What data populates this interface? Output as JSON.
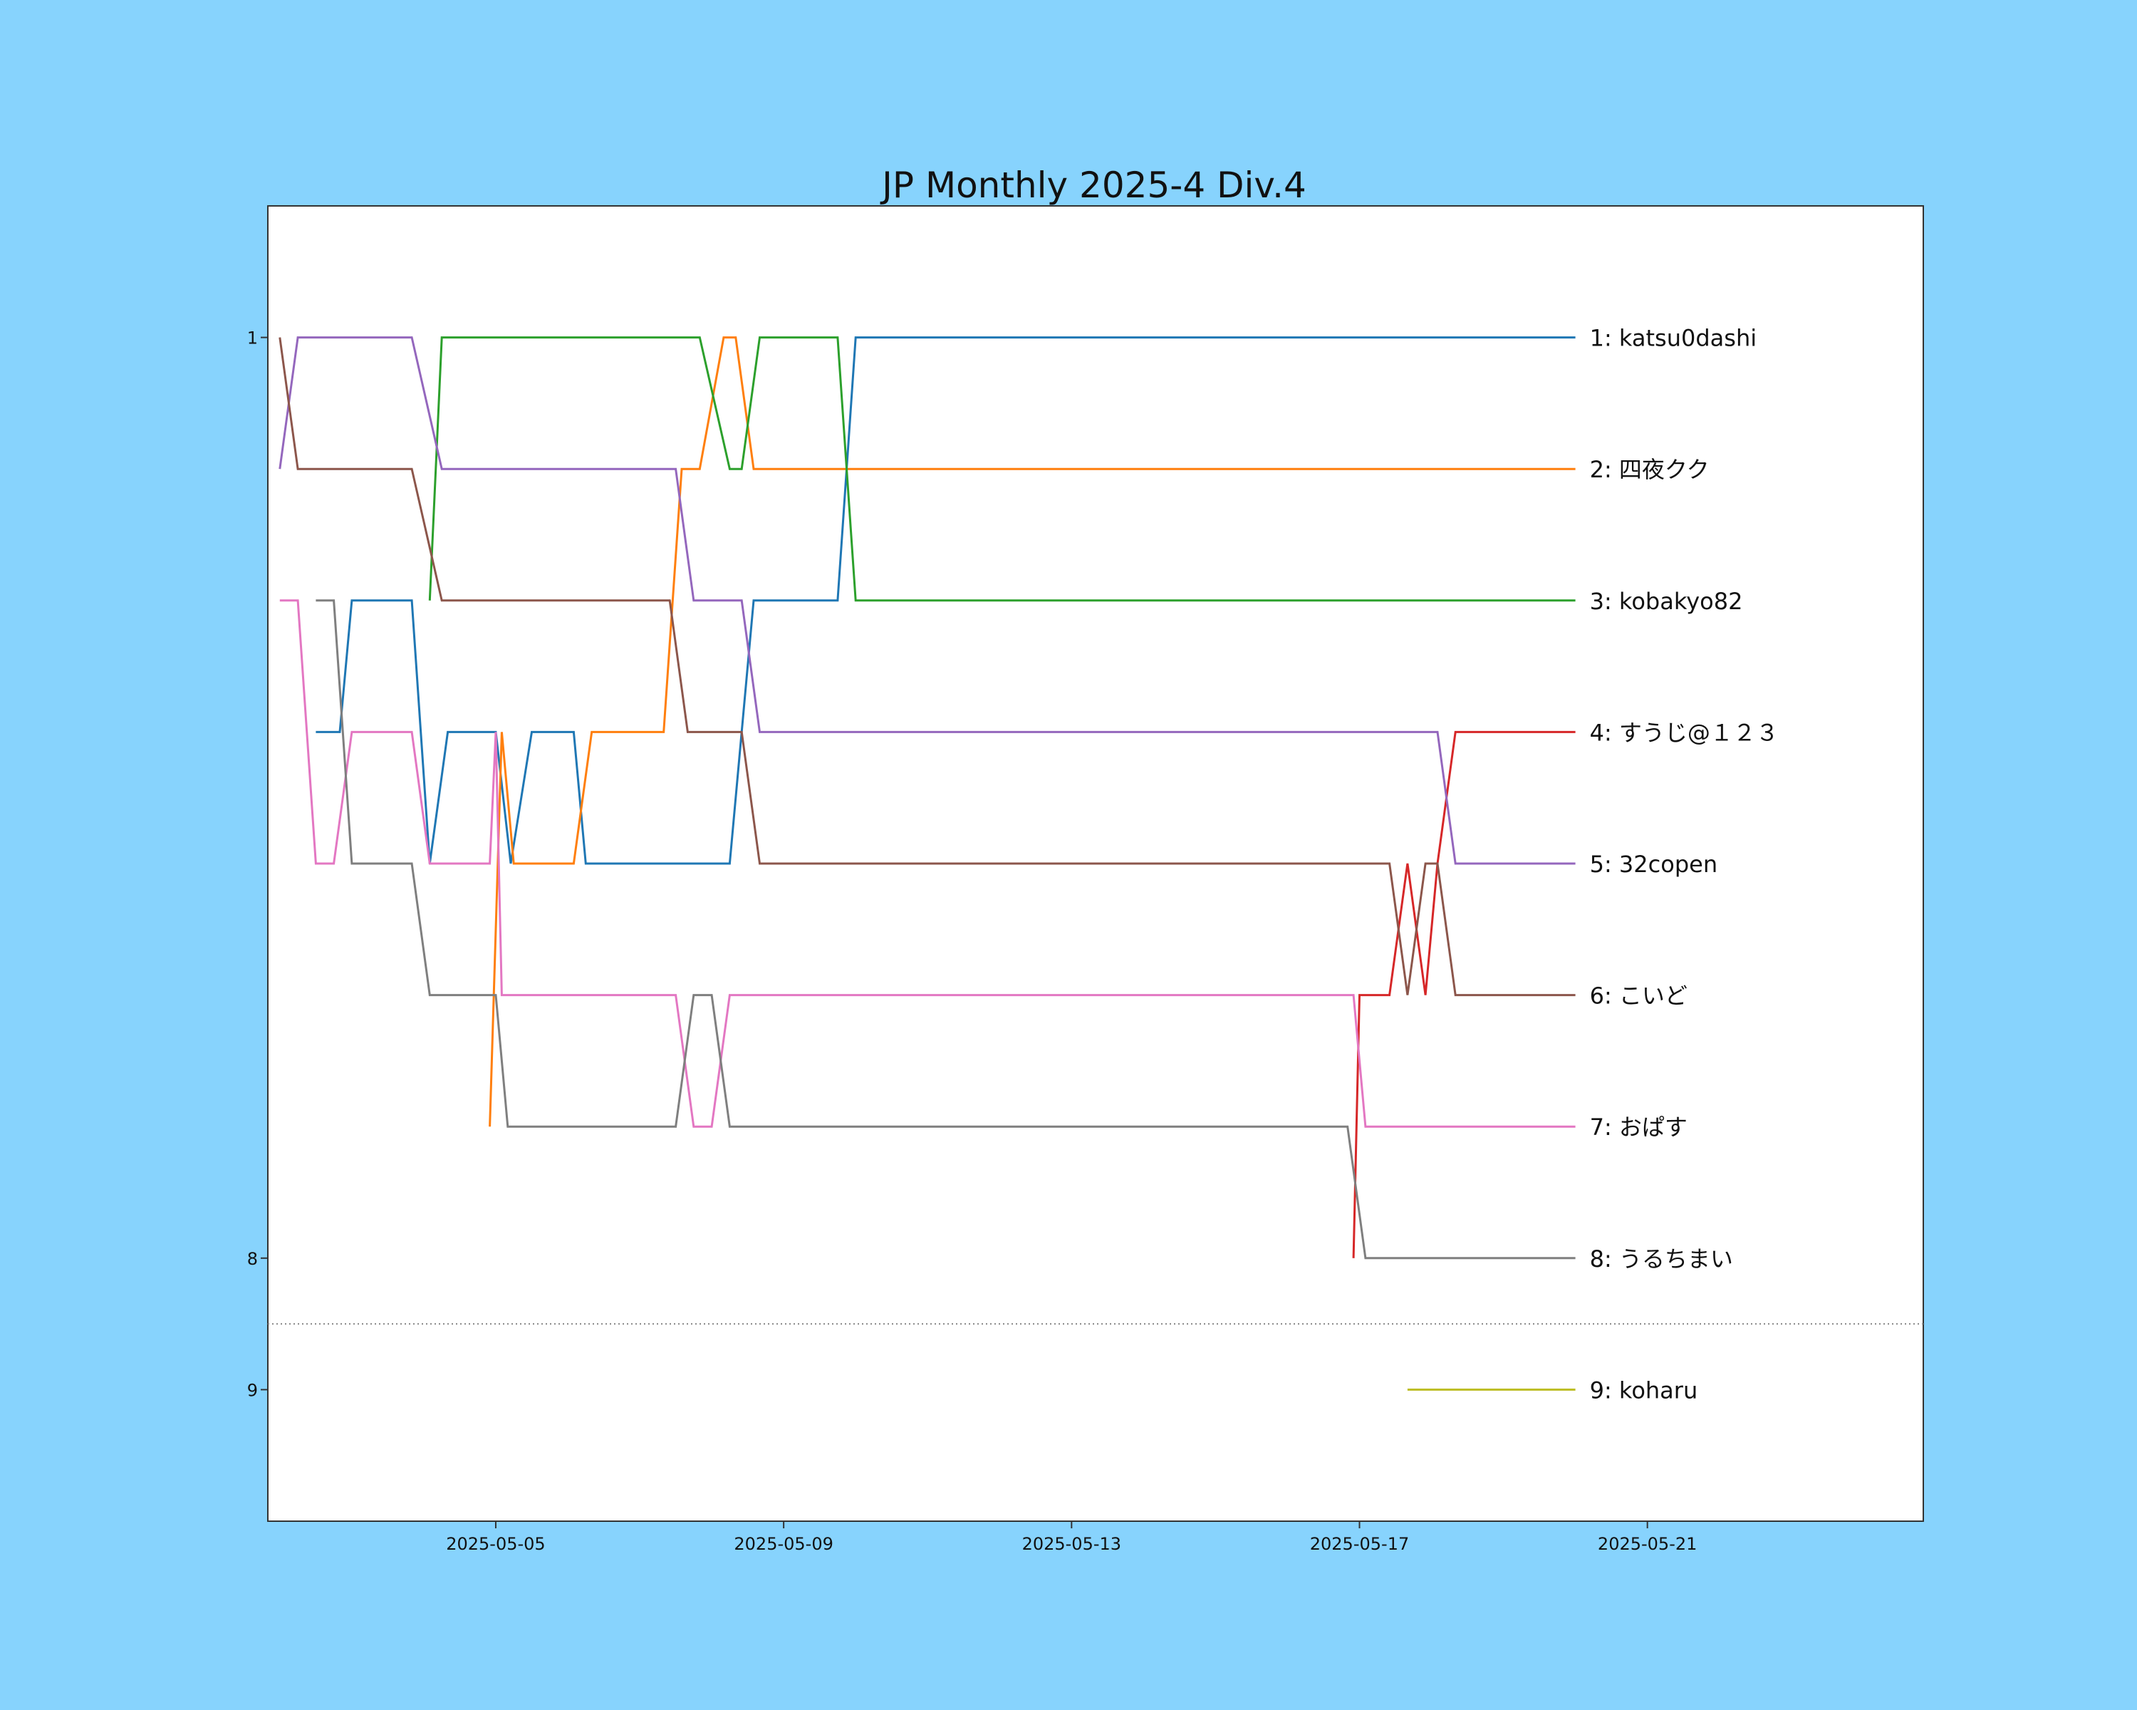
{
  "chart_data": {
    "type": "line",
    "title": "JP Monthly 2025-4 Div.4",
    "xlabel": "",
    "ylabel": "",
    "background": "#87d3fd",
    "plot_background": "#ffffff",
    "x_ticks": [
      "2025-05-05",
      "2025-05-09",
      "2025-05-13",
      "2025-05-17",
      "2025-05-21"
    ],
    "y_ticks": [
      1,
      8,
      9
    ],
    "x_range": [
      "2025-05-01T20:00",
      "2025-05-24T20:00"
    ],
    "y_range": [
      10,
      0
    ],
    "y_inverted": true,
    "grid": false,
    "promotion_line": {
      "y": 8.5,
      "style": "dotted",
      "color": "#888888"
    },
    "series": [
      {
        "name": "katsu0dashi",
        "label": "1: katsu0dashi",
        "color": "#1f77b4",
        "points": [
          [
            "2025-05-02T12:00",
            4
          ],
          [
            "2025-05-02T20:00",
            4
          ],
          [
            "2025-05-03T00:00",
            3
          ],
          [
            "2025-05-03T20:00",
            3
          ],
          [
            "2025-05-04T02:00",
            5
          ],
          [
            "2025-05-04T08:00",
            4
          ],
          [
            "2025-05-05T00:00",
            4
          ],
          [
            "2025-05-05T05:00",
            5
          ],
          [
            "2025-05-05T12:00",
            4
          ],
          [
            "2025-05-06T02:00",
            4
          ],
          [
            "2025-05-06T06:00",
            5
          ],
          [
            "2025-05-08T06:00",
            5
          ],
          [
            "2025-05-08T14:00",
            3
          ],
          [
            "2025-05-09T18:00",
            3
          ],
          [
            "2025-05-10T00:00",
            1
          ],
          [
            "2025-05-20T00:00",
            1
          ]
        ]
      },
      {
        "name": "四夜クク",
        "label": "2: 四夜クク",
        "color": "#ff7f0e",
        "points": [
          [
            "2025-05-04T22:00",
            7
          ],
          [
            "2025-05-05T02:00",
            4
          ],
          [
            "2025-05-05T06:00",
            5
          ],
          [
            "2025-05-06T02:00",
            5
          ],
          [
            "2025-05-06T08:00",
            4
          ],
          [
            "2025-05-07T08:00",
            4
          ],
          [
            "2025-05-07T14:00",
            2
          ],
          [
            "2025-05-07T20:00",
            2
          ],
          [
            "2025-05-08T04:00",
            1
          ],
          [
            "2025-05-08T08:00",
            1
          ],
          [
            "2025-05-08T14:00",
            2
          ],
          [
            "2025-05-20T00:00",
            2
          ]
        ]
      },
      {
        "name": "kobakyo82",
        "label": "3: kobakyo82",
        "color": "#2ca02c",
        "points": [
          [
            "2025-05-04T02:00",
            3
          ],
          [
            "2025-05-04T06:00",
            1
          ],
          [
            "2025-05-07T20:00",
            1
          ],
          [
            "2025-05-08T06:00",
            2
          ],
          [
            "2025-05-08T10:00",
            2
          ],
          [
            "2025-05-08T16:00",
            1
          ],
          [
            "2025-05-09T18:00",
            1
          ],
          [
            "2025-05-10T00:00",
            3
          ],
          [
            "2025-05-20T00:00",
            3
          ]
        ]
      },
      {
        "name": "すうじ@１２３",
        "label": "4: すうじ@１２３",
        "color": "#d62728",
        "points": [
          [
            "2025-05-16T22:00",
            8
          ],
          [
            "2025-05-17T00:00",
            6
          ],
          [
            "2025-05-17T10:00",
            6
          ],
          [
            "2025-05-17T16:00",
            5
          ],
          [
            "2025-05-17T22:00",
            6
          ],
          [
            "2025-05-18T02:00",
            5
          ],
          [
            "2025-05-18T08:00",
            4
          ],
          [
            "2025-05-20T00:00",
            4
          ]
        ]
      },
      {
        "name": "32copen",
        "label": "5: 32copen",
        "color": "#9467bd",
        "points": [
          [
            "2025-05-02T00:00",
            2
          ],
          [
            "2025-05-02T06:00",
            1
          ],
          [
            "2025-05-03T20:00",
            1
          ],
          [
            "2025-05-04T06:00",
            2
          ],
          [
            "2025-05-07T12:00",
            2
          ],
          [
            "2025-05-07T18:00",
            3
          ],
          [
            "2025-05-08T10:00",
            3
          ],
          [
            "2025-05-08T16:00",
            4
          ],
          [
            "2025-05-18T02:00",
            4
          ],
          [
            "2025-05-18T08:00",
            5
          ],
          [
            "2025-05-20T00:00",
            5
          ]
        ]
      },
      {
        "name": "こいど",
        "label": "6: こいど",
        "color": "#8c564b",
        "points": [
          [
            "2025-05-02T00:00",
            1
          ],
          [
            "2025-05-02T06:00",
            2
          ],
          [
            "2025-05-03T20:00",
            2
          ],
          [
            "2025-05-04T06:00",
            3
          ],
          [
            "2025-05-07T10:00",
            3
          ],
          [
            "2025-05-07T16:00",
            4
          ],
          [
            "2025-05-08T10:00",
            4
          ],
          [
            "2025-05-08T16:00",
            5
          ],
          [
            "2025-05-17T10:00",
            5
          ],
          [
            "2025-05-17T16:00",
            6
          ],
          [
            "2025-05-17T22:00",
            5
          ],
          [
            "2025-05-18T02:00",
            5
          ],
          [
            "2025-05-18T08:00",
            6
          ],
          [
            "2025-05-20T00:00",
            6
          ]
        ]
      },
      {
        "name": "おぱす",
        "label": "7: おぱす",
        "color": "#e377c2",
        "points": [
          [
            "2025-05-02T00:00",
            3
          ],
          [
            "2025-05-02T06:00",
            3
          ],
          [
            "2025-05-02T12:00",
            5
          ],
          [
            "2025-05-02T18:00",
            5
          ],
          [
            "2025-05-03T00:00",
            4
          ],
          [
            "2025-05-03T20:00",
            4
          ],
          [
            "2025-05-04T02:00",
            5
          ],
          [
            "2025-05-04T22:00",
            5
          ],
          [
            "2025-05-05T00:00",
            4
          ],
          [
            "2025-05-05T02:00",
            6
          ],
          [
            "2025-05-07T12:00",
            6
          ],
          [
            "2025-05-07T18:00",
            7
          ],
          [
            "2025-05-08T00:00",
            7
          ],
          [
            "2025-05-08T06:00",
            6
          ],
          [
            "2025-05-16T22:00",
            6
          ],
          [
            "2025-05-17T02:00",
            7
          ],
          [
            "2025-05-20T00:00",
            7
          ]
        ]
      },
      {
        "name": "うるちまい",
        "label": "8: うるちまい",
        "color": "#7f7f7f",
        "points": [
          [
            "2025-05-02T12:00",
            3
          ],
          [
            "2025-05-02T18:00",
            3
          ],
          [
            "2025-05-03T00:00",
            5
          ],
          [
            "2025-05-03T20:00",
            5
          ],
          [
            "2025-05-04T02:00",
            6
          ],
          [
            "2025-05-05T00:00",
            6
          ],
          [
            "2025-05-05T04:00",
            7
          ],
          [
            "2025-05-07T12:00",
            7
          ],
          [
            "2025-05-07T18:00",
            6
          ],
          [
            "2025-05-08T00:00",
            6
          ],
          [
            "2025-05-08T06:00",
            7
          ],
          [
            "2025-05-16T20:00",
            7
          ],
          [
            "2025-05-17T02:00",
            8
          ],
          [
            "2025-05-20T00:00",
            8
          ]
        ]
      },
      {
        "name": "koharu",
        "label": "9: koharu",
        "color": "#bcbd22",
        "points": [
          [
            "2025-05-17T16:00",
            9
          ],
          [
            "2025-05-20T00:00",
            9
          ]
        ]
      }
    ]
  }
}
